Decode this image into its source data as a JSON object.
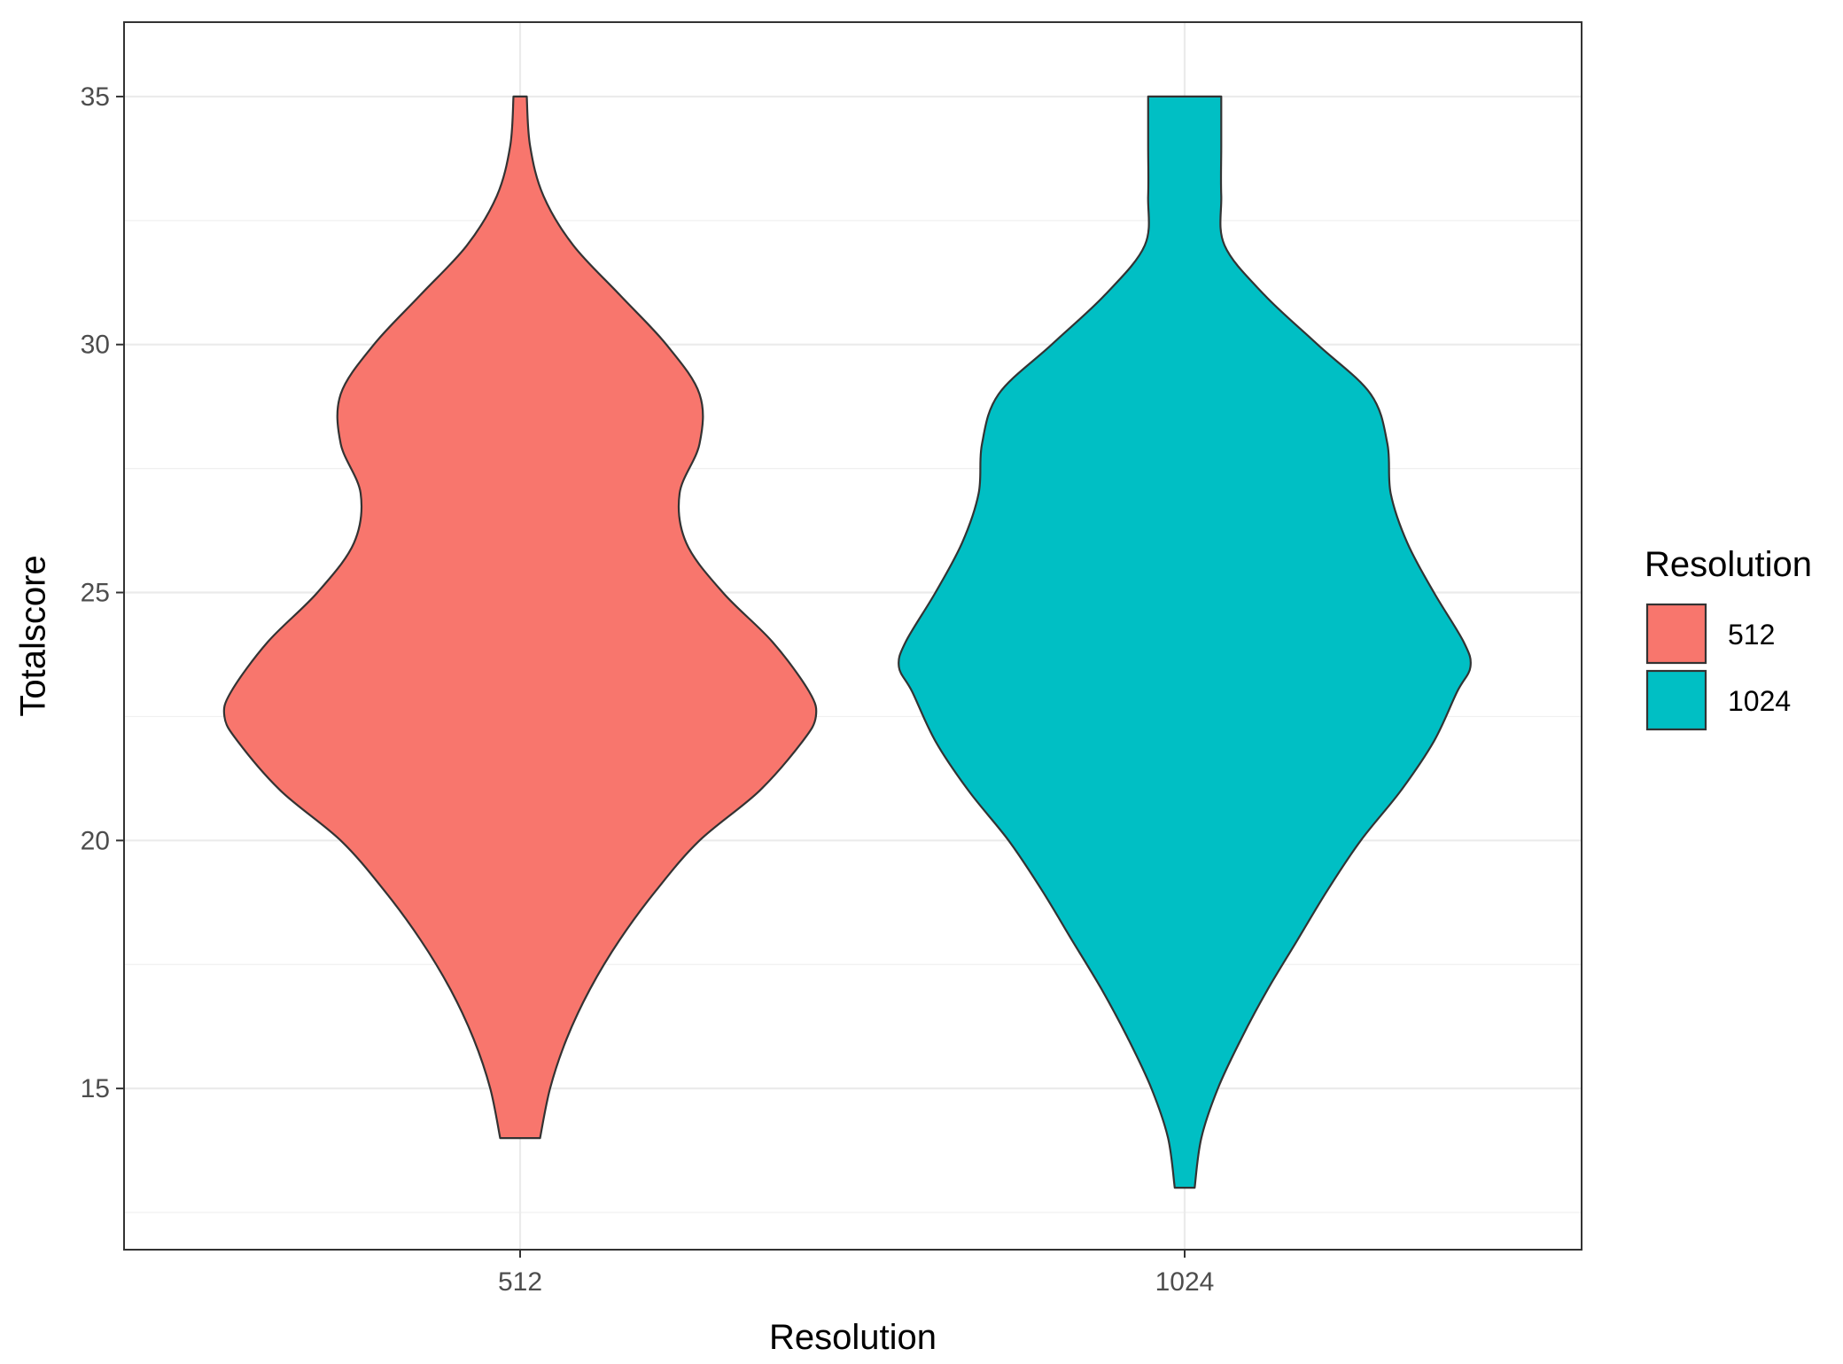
{
  "chart_data": {
    "type": "violin",
    "categories": [
      "512",
      "1024"
    ],
    "xlabel": "Resolution",
    "ylabel": "Totalscore",
    "yticks": [
      15,
      20,
      25,
      30,
      35
    ],
    "ylim": [
      11.75,
      36.5
    ],
    "grid": true,
    "legend": {
      "title": "Resolution",
      "position": "right",
      "entries": [
        {
          "label": "512",
          "color": "#F8766D"
        },
        {
          "label": "1024",
          "color": "#00BFC4"
        }
      ]
    },
    "series": [
      {
        "category": "512",
        "color": "#F8766D",
        "range": [
          14,
          35
        ],
        "density_half_width": [
          [
            14,
            0.03
          ],
          [
            15,
            0.045
          ],
          [
            16,
            0.07
          ],
          [
            17,
            0.105
          ],
          [
            18,
            0.15
          ],
          [
            19,
            0.205
          ],
          [
            20,
            0.27
          ],
          [
            21,
            0.36
          ],
          [
            22,
            0.425
          ],
          [
            22.5,
            0.445
          ],
          [
            23,
            0.435
          ],
          [
            24,
            0.38
          ],
          [
            25,
            0.305
          ],
          [
            26,
            0.25
          ],
          [
            27,
            0.24
          ],
          [
            28,
            0.27
          ],
          [
            29,
            0.27
          ],
          [
            30,
            0.22
          ],
          [
            31,
            0.15
          ],
          [
            32,
            0.08
          ],
          [
            33,
            0.035
          ],
          [
            34,
            0.015
          ],
          [
            35,
            0.01
          ]
        ]
      },
      {
        "category": "1024",
        "color": "#00BFC4",
        "range": [
          13,
          35
        ],
        "density_half_width": [
          [
            13,
            0.015
          ],
          [
            14,
            0.025
          ],
          [
            15,
            0.05
          ],
          [
            16,
            0.085
          ],
          [
            17,
            0.125
          ],
          [
            18,
            0.17
          ],
          [
            19,
            0.215
          ],
          [
            20,
            0.265
          ],
          [
            21,
            0.325
          ],
          [
            22,
            0.375
          ],
          [
            23,
            0.41
          ],
          [
            23.5,
            0.43
          ],
          [
            24,
            0.42
          ],
          [
            25,
            0.375
          ],
          [
            26,
            0.335
          ],
          [
            27,
            0.31
          ],
          [
            28,
            0.305
          ],
          [
            29,
            0.28
          ],
          [
            30,
            0.2
          ],
          [
            31,
            0.12
          ],
          [
            32,
            0.06
          ],
          [
            33,
            0.055
          ],
          [
            34,
            0.055
          ],
          [
            35,
            0.055
          ]
        ]
      }
    ]
  }
}
